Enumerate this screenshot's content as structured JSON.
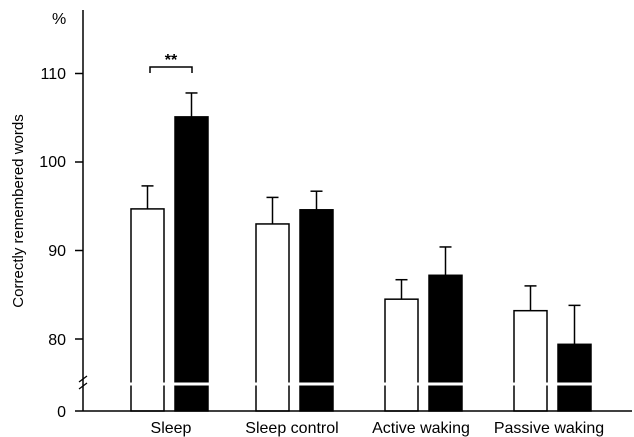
{
  "chart_data": {
    "type": "bar",
    "ylabel": "Correctly remembered words",
    "y_unit": "%",
    "categories": [
      "Sleep",
      "Sleep control",
      "Active waking",
      "Passive waking"
    ],
    "series": [
      {
        "fill": "#ffffff",
        "values": [
          94.7,
          93.0,
          84.5,
          83.2
        ],
        "errors": [
          2.6,
          3.0,
          2.2,
          2.8
        ]
      },
      {
        "fill": "#000000",
        "values": [
          105.1,
          94.6,
          87.2,
          79.4
        ],
        "errors": [
          2.7,
          2.1,
          3.2,
          4.4
        ]
      }
    ],
    "y_ticks": [
      "0",
      "80",
      "90",
      "100",
      "110"
    ],
    "ylim": [
      75,
      115
    ],
    "axis_break": true,
    "annotations": [
      {
        "text": "**",
        "category": "Sleep"
      }
    ],
    "grid": false,
    "legend": "none"
  }
}
